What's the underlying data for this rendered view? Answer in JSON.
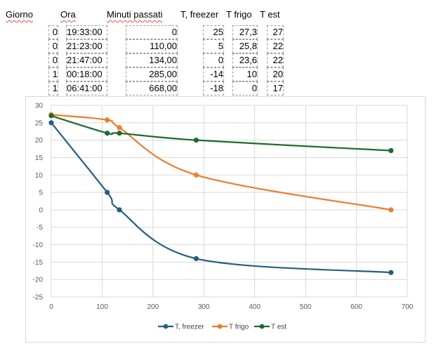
{
  "table": {
    "headers": [
      "Giorno",
      "Ora",
      "Minuti passati",
      "T, freezer",
      "T frigo",
      "T est"
    ],
    "rows": [
      [
        "0",
        "19:33:00",
        "0",
        "25",
        "27,3",
        "27"
      ],
      [
        "0",
        "21:23:00",
        "110,00",
        "5",
        "25,8",
        "22"
      ],
      [
        "0",
        "21:47:00",
        "134,00",
        "0",
        "23,6",
        "22"
      ],
      [
        "1",
        "00:18:00",
        "285,00",
        "-14",
        "10",
        "20"
      ],
      [
        "1",
        "06:41:00",
        "668,00",
        "-18",
        "0",
        "17"
      ]
    ]
  },
  "chart_data": {
    "type": "scatter",
    "title": "",
    "xlabel": "",
    "ylabel": "",
    "xlim": [
      0,
      700
    ],
    "ylim": [
      -25,
      30
    ],
    "x_ticks": [
      "0",
      "100",
      "200",
      "300",
      "400",
      "500",
      "600",
      "700"
    ],
    "y_ticks": [
      "30",
      "25",
      "20",
      "15",
      "10",
      "5",
      "0",
      "-5",
      "-10",
      "-15",
      "-20",
      "-25"
    ],
    "grid": "vertical and horizontal",
    "legend_position": "bottom",
    "x": [
      0,
      110,
      134,
      285,
      668
    ],
    "series": [
      {
        "name": "T, freezer",
        "color": "#255e7e",
        "values": [
          25,
          5,
          0,
          -14,
          -18
        ]
      },
      {
        "name": "T frigo",
        "color": "#ed7d31",
        "values": [
          27.3,
          25.8,
          23.6,
          10,
          0
        ]
      },
      {
        "name": "T est",
        "color": "#1e6b2a",
        "values": [
          27,
          22,
          22,
          20,
          17
        ]
      }
    ]
  }
}
